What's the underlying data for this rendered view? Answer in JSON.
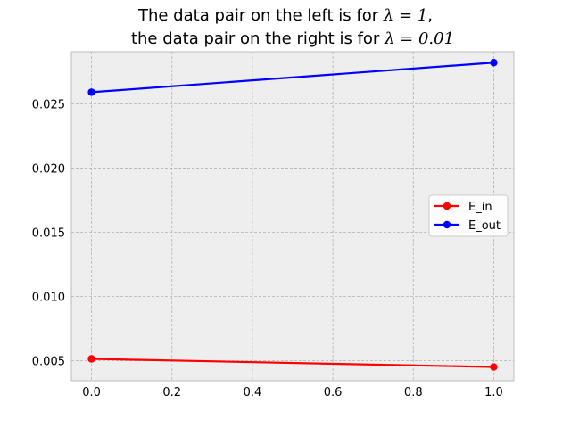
{
  "chart_data": {
    "type": "line",
    "title": {
      "line1_prefix": "The data pair on the left is for ",
      "line1_math": "λ = 1",
      "line1_suffix": ",",
      "line2_prefix": "the data pair on the right is for ",
      "line2_math": "λ = 0.01"
    },
    "xlabel": "",
    "ylabel": "",
    "x": [
      0.0,
      1.0
    ],
    "xlim": [
      -0.05,
      1.05
    ],
    "ylim": [
      0.00345,
      0.02905
    ],
    "xticks": [
      "0.0",
      "0.2",
      "0.4",
      "0.6",
      "0.8",
      "1.0"
    ],
    "yticks": [
      "0.005",
      "0.010",
      "0.015",
      "0.020",
      "0.025"
    ],
    "grid": true,
    "legend_position": "center-right",
    "series": [
      {
        "name": "E_in",
        "color": "#ff0000",
        "values": [
          0.00515,
          0.00452
        ]
      },
      {
        "name": "E_out",
        "color": "#0000ff",
        "values": [
          0.0259,
          0.0282
        ]
      }
    ]
  }
}
